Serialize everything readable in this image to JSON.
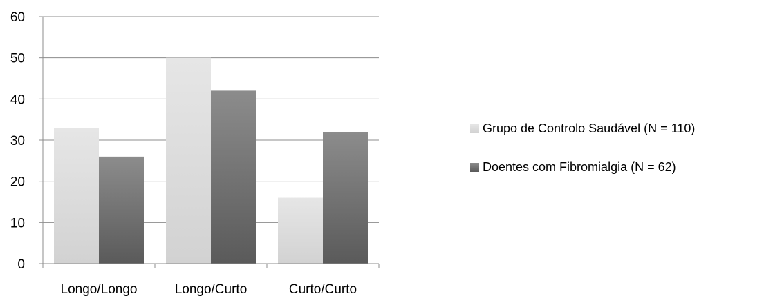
{
  "chart_data": {
    "type": "bar",
    "categories": [
      "Longo/Longo",
      "Longo/Curto",
      "Curto/Curto"
    ],
    "series": [
      {
        "name": "Grupo de Controlo Saudável (N = 110)",
        "values": [
          33,
          50,
          16
        ],
        "color": "#d9d9d9"
      },
      {
        "name": "Doentes com Fibromialgia (N = 62)",
        "values": [
          26,
          42,
          32
        ],
        "color": "#7f7f7f"
      }
    ],
    "title": "",
    "xlabel": "",
    "ylabel": "",
    "ylim": [
      0,
      60
    ],
    "yticks": [
      "0",
      "10",
      "20",
      "30",
      "40",
      "50",
      "60"
    ],
    "grid": "horizontal",
    "legend_position": "right"
  }
}
